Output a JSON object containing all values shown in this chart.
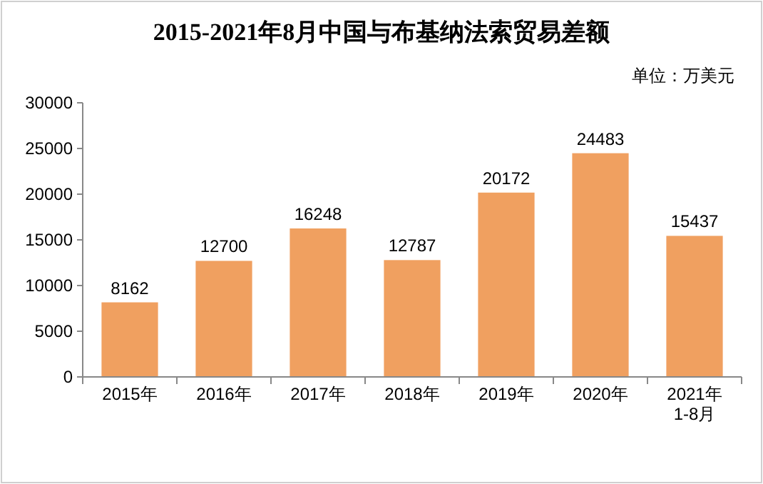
{
  "chart_data": {
    "type": "bar",
    "title": "2015-2021年8月中国与布基纳法索贸易差额",
    "annotations": [
      "单位：万美元"
    ],
    "categories": [
      "2015年",
      "2016年",
      "2017年",
      "2018年",
      "2019年",
      "2020年",
      "2021年\n1-8月"
    ],
    "values": [
      8162,
      12700,
      16248,
      12787,
      20172,
      24483,
      15437
    ],
    "color": "#f0a060",
    "ylim": [
      0,
      30000
    ],
    "yticks": [
      0,
      5000,
      10000,
      15000,
      20000,
      25000,
      30000
    ],
    "data_labels": true
  }
}
